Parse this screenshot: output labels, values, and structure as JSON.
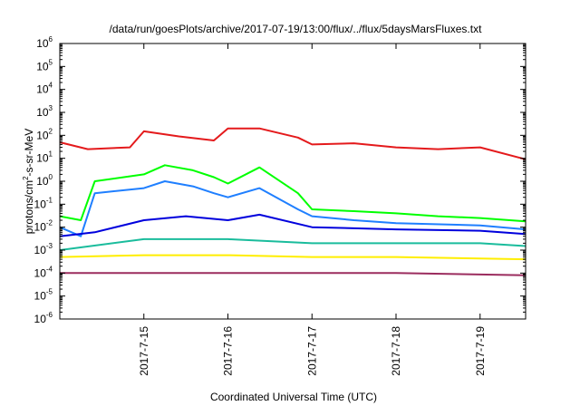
{
  "chart_data": {
    "type": "line",
    "title": "/data/run/goesPlots/archive/2017-07-19/13:00/flux/../flux/5daysMarsFluxes.txt",
    "xlabel": "Coordinated Universal Time (UTC)",
    "ylabel_parts": [
      "protons/cm",
      "2",
      "-s-sr-MeV"
    ],
    "y_scale": "log",
    "ylim": [
      1e-06,
      1000000.0
    ],
    "y_ticks": [
      {
        "base": "10",
        "exp": "-6",
        "value": 1e-06
      },
      {
        "base": "10",
        "exp": "-5",
        "value": 1e-05
      },
      {
        "base": "10",
        "exp": "-4",
        "value": 0.0001
      },
      {
        "base": "10",
        "exp": "-3",
        "value": 0.001
      },
      {
        "base": "10",
        "exp": "-2",
        "value": 0.01
      },
      {
        "base": "10",
        "exp": "-1",
        "value": 0.1
      },
      {
        "base": "10",
        "exp": "0",
        "value": 1
      },
      {
        "base": "10",
        "exp": "1",
        "value": 10
      },
      {
        "base": "10",
        "exp": "2",
        "value": 100
      },
      {
        "base": "10",
        "exp": "3",
        "value": 1000
      },
      {
        "base": "10",
        "exp": "4",
        "value": 10000
      },
      {
        "base": "10",
        "exp": "5",
        "value": 100000
      },
      {
        "base": "10",
        "exp": "6",
        "value": 1000000
      }
    ],
    "xlim": [
      "2017-07-14 00:00",
      "2017-07-19 13:00"
    ],
    "x_ticks": [
      {
        "label": "2017-7-15",
        "date": "2017-07-15 00:00"
      },
      {
        "label": "2017-7-16",
        "date": "2017-07-16 00:00"
      },
      {
        "label": "2017-7-17",
        "date": "2017-07-17 00:00"
      },
      {
        "label": "2017-7-18",
        "date": "2017-07-18 00:00"
      },
      {
        "label": "2017-7-19",
        "date": "2017-07-19 00:00"
      }
    ],
    "grid": false,
    "legend": "none",
    "series": [
      {
        "color": "#e41a1c",
        "points": [
          [
            "2017-07-14 00:00",
            50
          ],
          [
            "2017-07-14 08:00",
            25
          ],
          [
            "2017-07-14 20:00",
            30
          ],
          [
            "2017-07-15 00:00",
            150
          ],
          [
            "2017-07-15 10:00",
            90
          ],
          [
            "2017-07-15 20:00",
            60
          ],
          [
            "2017-07-16 00:00",
            200
          ],
          [
            "2017-07-16 09:00",
            200
          ],
          [
            "2017-07-16 20:00",
            80
          ],
          [
            "2017-07-17 00:00",
            40
          ],
          [
            "2017-07-17 12:00",
            45
          ],
          [
            "2017-07-18 00:00",
            30
          ],
          [
            "2017-07-18 12:00",
            25
          ],
          [
            "2017-07-19 00:00",
            30
          ],
          [
            "2017-07-19 13:00",
            9
          ]
        ]
      },
      {
        "color": "#00ff00",
        "points": [
          [
            "2017-07-14 00:00",
            0.03
          ],
          [
            "2017-07-14 06:00",
            0.02
          ],
          [
            "2017-07-14 10:00",
            1
          ],
          [
            "2017-07-15 00:00",
            2
          ],
          [
            "2017-07-15 06:00",
            5
          ],
          [
            "2017-07-15 14:00",
            3
          ],
          [
            "2017-07-15 20:00",
            1.5
          ],
          [
            "2017-07-16 00:00",
            0.8
          ],
          [
            "2017-07-16 09:00",
            4
          ],
          [
            "2017-07-16 20:00",
            0.3
          ],
          [
            "2017-07-17 00:00",
            0.06
          ],
          [
            "2017-07-17 12:00",
            0.05
          ],
          [
            "2017-07-18 00:00",
            0.04
          ],
          [
            "2017-07-18 12:00",
            0.03
          ],
          [
            "2017-07-19 00:00",
            0.025
          ],
          [
            "2017-07-19 13:00",
            0.018
          ]
        ]
      },
      {
        "color": "#1f7fff",
        "points": [
          [
            "2017-07-14 00:00",
            0.01
          ],
          [
            "2017-07-14 06:00",
            0.004
          ],
          [
            "2017-07-14 10:00",
            0.3
          ],
          [
            "2017-07-15 00:00",
            0.5
          ],
          [
            "2017-07-15 06:00",
            1
          ],
          [
            "2017-07-15 14:00",
            0.6
          ],
          [
            "2017-07-15 20:00",
            0.3
          ],
          [
            "2017-07-16 00:00",
            0.2
          ],
          [
            "2017-07-16 09:00",
            0.5
          ],
          [
            "2017-07-16 20:00",
            0.06
          ],
          [
            "2017-07-17 00:00",
            0.03
          ],
          [
            "2017-07-17 12:00",
            0.02
          ],
          [
            "2017-07-18 00:00",
            0.015
          ],
          [
            "2017-07-19 00:00",
            0.012
          ],
          [
            "2017-07-19 13:00",
            0.008
          ]
        ]
      },
      {
        "color": "#0000dd",
        "points": [
          [
            "2017-07-14 00:00",
            0.004
          ],
          [
            "2017-07-14 10:00",
            0.006
          ],
          [
            "2017-07-15 00:00",
            0.02
          ],
          [
            "2017-07-15 12:00",
            0.03
          ],
          [
            "2017-07-16 00:00",
            0.02
          ],
          [
            "2017-07-16 09:00",
            0.035
          ],
          [
            "2017-07-17 00:00",
            0.01
          ],
          [
            "2017-07-18 00:00",
            0.008
          ],
          [
            "2017-07-19 00:00",
            0.007
          ],
          [
            "2017-07-19 13:00",
            0.005
          ]
        ]
      },
      {
        "color": "#1abc9c",
        "points": [
          [
            "2017-07-14 00:00",
            0.001
          ],
          [
            "2017-07-15 00:00",
            0.003
          ],
          [
            "2017-07-16 00:00",
            0.003
          ],
          [
            "2017-07-17 00:00",
            0.002
          ],
          [
            "2017-07-18 00:00",
            0.002
          ],
          [
            "2017-07-19 00:00",
            0.002
          ],
          [
            "2017-07-19 13:00",
            0.0015
          ]
        ]
      },
      {
        "color": "#ffee00",
        "points": [
          [
            "2017-07-14 00:00",
            0.0005
          ],
          [
            "2017-07-15 00:00",
            0.0006
          ],
          [
            "2017-07-16 00:00",
            0.0006
          ],
          [
            "2017-07-17 00:00",
            0.0005
          ],
          [
            "2017-07-18 00:00",
            0.0005
          ],
          [
            "2017-07-19 13:00",
            0.0004
          ]
        ]
      },
      {
        "color": "#9b2c5e",
        "points": [
          [
            "2017-07-14 00:00",
            0.0001
          ],
          [
            "2017-07-15 00:00",
            0.0001
          ],
          [
            "2017-07-16 00:00",
            0.0001
          ],
          [
            "2017-07-17 00:00",
            0.0001
          ],
          [
            "2017-07-18 00:00",
            0.0001
          ],
          [
            "2017-07-19 13:00",
            8e-05
          ]
        ]
      }
    ]
  }
}
